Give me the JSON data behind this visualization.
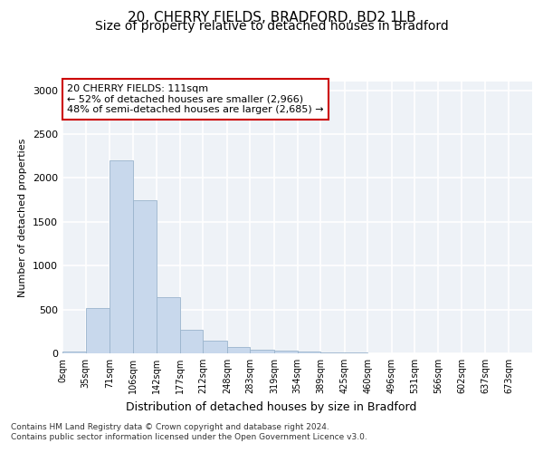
{
  "title_line1": "20, CHERRY FIELDS, BRADFORD, BD2 1LB",
  "title_line2": "Size of property relative to detached houses in Bradford",
  "xlabel": "Distribution of detached houses by size in Bradford",
  "ylabel": "Number of detached properties",
  "bar_color": "#c8d8ec",
  "bar_edge_color": "#9ab4cc",
  "background_color": "#eef2f7",
  "annotation_box_text": "20 CHERRY FIELDS: 111sqm\n← 52% of detached houses are smaller (2,966)\n48% of semi-detached houses are larger (2,685) →",
  "annotation_box_color": "white",
  "annotation_box_edge": "#cc0000",
  "bin_edges": [
    0,
    35,
    71,
    106,
    142,
    177,
    212,
    248,
    283,
    319,
    354,
    389,
    425,
    460,
    496,
    531,
    566,
    602,
    637,
    673,
    708
  ],
  "bar_heights": [
    25,
    520,
    2200,
    1750,
    640,
    270,
    145,
    75,
    40,
    30,
    20,
    15,
    10,
    5,
    2,
    1,
    1,
    0,
    0,
    0
  ],
  "ylim": [
    0,
    3100
  ],
  "yticks": [
    0,
    500,
    1000,
    1500,
    2000,
    2500,
    3000
  ],
  "footer_text": "Contains HM Land Registry data © Crown copyright and database right 2024.\nContains public sector information licensed under the Open Government Licence v3.0.",
  "grid_color": "#ffffff",
  "title_fontsize": 11,
  "subtitle_fontsize": 10,
  "ylabel_fontsize": 8,
  "xlabel_fontsize": 9,
  "tick_label_fontsize": 7,
  "annotation_fontsize": 8,
  "footer_fontsize": 6.5
}
